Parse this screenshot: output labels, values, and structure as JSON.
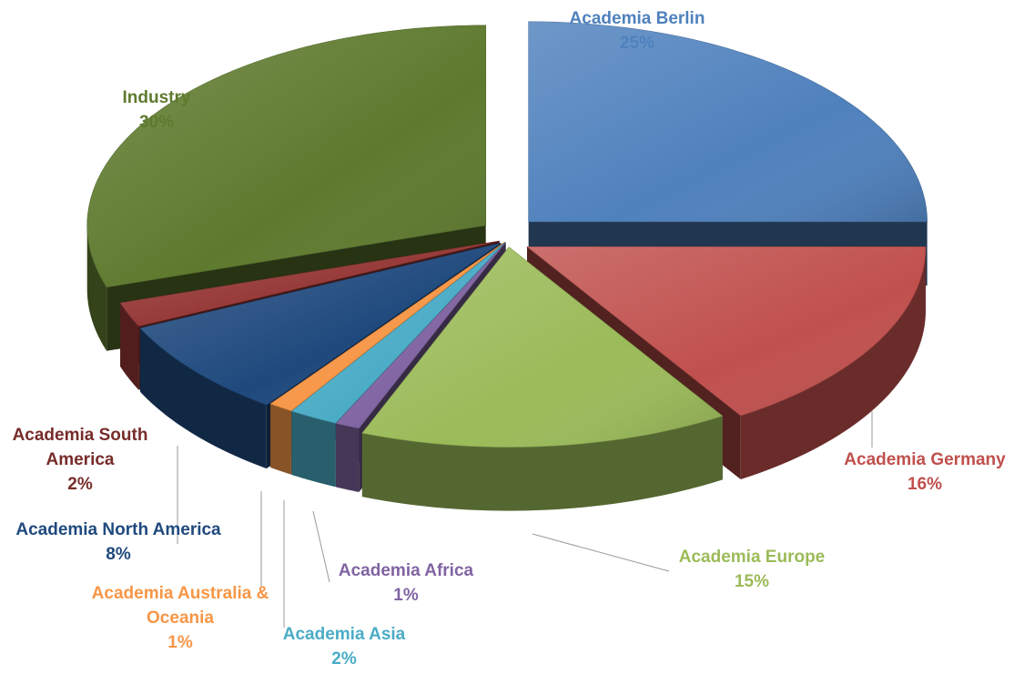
{
  "chart_data": {
    "type": "pie",
    "title": "",
    "style": "3d-exploded",
    "slices": [
      {
        "name": "Academia Berlin",
        "value": 25,
        "label": "25%",
        "color": "#4F81BD"
      },
      {
        "name": "Academia Germany",
        "value": 16,
        "label": "16%",
        "color": "#C0504D"
      },
      {
        "name": "Academia Europe",
        "value": 15,
        "label": "15%",
        "color": "#9BBB59"
      },
      {
        "name": "Academia Africa",
        "value": 1,
        "label": "1%",
        "color": "#8064A2"
      },
      {
        "name": "Academia Asia",
        "value": 2,
        "label": "2%",
        "color": "#4BACC6"
      },
      {
        "name": "Academia Australia & Oceania",
        "value": 1,
        "label": "1%",
        "color": "#F79646"
      },
      {
        "name": "Academia North America",
        "value": 8,
        "label": "8%",
        "color": "#1F497D"
      },
      {
        "name": "Academia South America",
        "value": 2,
        "label": "2%",
        "color": "#943634"
      },
      {
        "name": "Industry",
        "value": 30,
        "label": "30%",
        "color": "#5E7A2E"
      }
    ],
    "label_colors": {
      "Academia Berlin": "#4F81BD",
      "Academia Germany": "#C0504D",
      "Academia Europe": "#9BBB59",
      "Academia Africa": "#8064A2",
      "Academia Asia": "#4BACC6",
      "Academia Australia & Oceania": "#F79646",
      "Academia North America": "#1F497D",
      "Academia South America": "#772C2A",
      "Industry": "#5E7A2E"
    },
    "legend": "none"
  }
}
